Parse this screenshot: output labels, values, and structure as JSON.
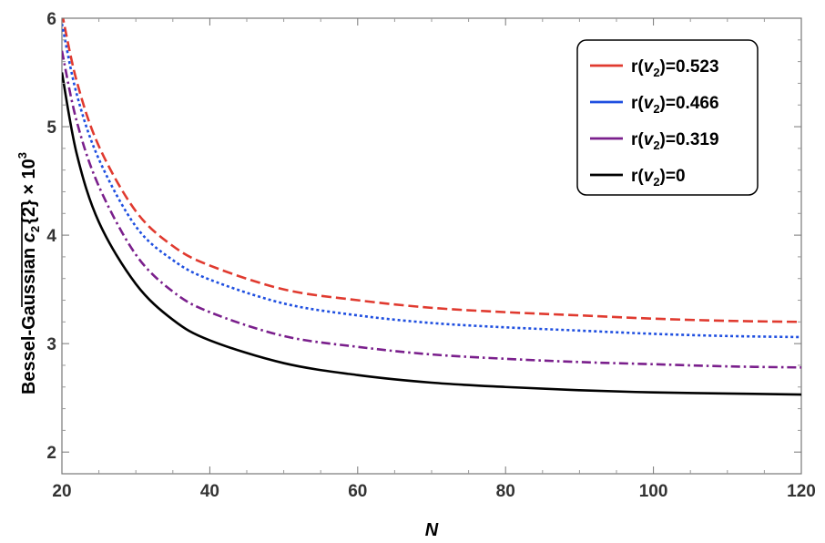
{
  "chart_data": {
    "type": "line",
    "title": "",
    "xlabel": "N",
    "ylabel": {
      "prefix": "Bessel-Gaussian ",
      "c": "c",
      "sub": "2",
      "braces": "{2}",
      "times": " × 10",
      "exp": "3"
    },
    "xlim": [
      20,
      120
    ],
    "ylim": [
      1.8,
      6.0
    ],
    "xticks": [
      20,
      40,
      60,
      80,
      100,
      120
    ],
    "yticks": [
      2,
      3,
      4,
      5,
      6
    ],
    "grid": false,
    "legend_position": "top-right",
    "x": [
      20,
      22,
      25,
      30,
      35,
      40,
      50,
      60,
      70,
      80,
      90,
      100,
      110,
      120
    ],
    "series": [
      {
        "name": "r(v2)=0.523",
        "label": {
          "prefix": "r(",
          "v": "v",
          "sub": "2",
          "suffix": ")=0.523"
        },
        "color": "#e03a2f",
        "dash": "dashed",
        "values": [
          6.05,
          5.42,
          4.82,
          4.22,
          3.9,
          3.72,
          3.5,
          3.4,
          3.33,
          3.29,
          3.26,
          3.23,
          3.21,
          3.2
        ]
      },
      {
        "name": "r(v2)=0.466",
        "label": {
          "prefix": "r(",
          "v": "v",
          "sub": "2",
          "suffix": ")=0.466"
        },
        "color": "#1f4fe0",
        "dash": "dotted",
        "values": [
          5.95,
          5.3,
          4.7,
          4.08,
          3.77,
          3.59,
          3.37,
          3.26,
          3.19,
          3.15,
          3.12,
          3.09,
          3.07,
          3.06
        ]
      },
      {
        "name": "r(v2)=0.319",
        "label": {
          "prefix": "r(",
          "v": "v",
          "sub": "2",
          "suffix": ")=0.319"
        },
        "color": "#7a1f8c",
        "dash": "dashdot",
        "values": [
          5.7,
          5.05,
          4.45,
          3.82,
          3.48,
          3.29,
          3.07,
          2.97,
          2.9,
          2.86,
          2.83,
          2.81,
          2.79,
          2.78
        ]
      },
      {
        "name": "r(v2)=0",
        "label": {
          "prefix": "r(",
          "v": "v",
          "sub": "2",
          "suffix": ")=0"
        },
        "color": "#000000",
        "dash": "solid",
        "values": [
          5.5,
          4.75,
          4.12,
          3.55,
          3.22,
          3.03,
          2.82,
          2.71,
          2.64,
          2.6,
          2.57,
          2.55,
          2.54,
          2.53
        ]
      }
    ]
  }
}
